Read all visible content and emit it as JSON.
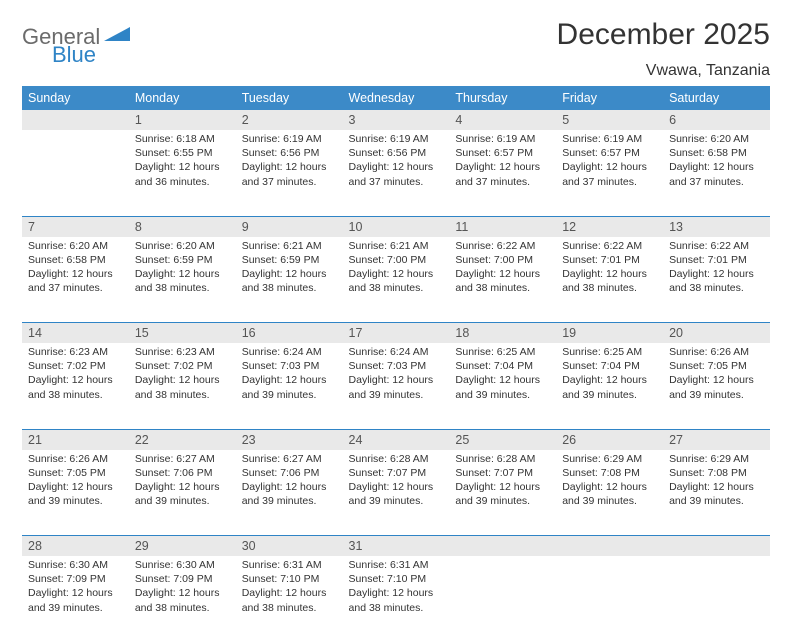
{
  "logo": {
    "gray": "General",
    "blue": "Blue"
  },
  "title": "December 2025",
  "location": "Vwawa, Tanzania",
  "weekdays": [
    "Sunday",
    "Monday",
    "Tuesday",
    "Wednesday",
    "Thursday",
    "Friday",
    "Saturday"
  ],
  "colors": {
    "header_bg": "#3c8ac8",
    "header_text": "#ffffff",
    "daynum_bg": "#e9e9e9",
    "rule": "#2f84c6",
    "logo_gray": "#6b6b6b",
    "logo_blue": "#2f84c6",
    "body_text": "#333333"
  },
  "weeks": [
    [
      null,
      {
        "n": "1",
        "sr": "Sunrise: 6:18 AM",
        "ss": "Sunset: 6:55 PM",
        "dl": "Daylight: 12 hours and 36 minutes."
      },
      {
        "n": "2",
        "sr": "Sunrise: 6:19 AM",
        "ss": "Sunset: 6:56 PM",
        "dl": "Daylight: 12 hours and 37 minutes."
      },
      {
        "n": "3",
        "sr": "Sunrise: 6:19 AM",
        "ss": "Sunset: 6:56 PM",
        "dl": "Daylight: 12 hours and 37 minutes."
      },
      {
        "n": "4",
        "sr": "Sunrise: 6:19 AM",
        "ss": "Sunset: 6:57 PM",
        "dl": "Daylight: 12 hours and 37 minutes."
      },
      {
        "n": "5",
        "sr": "Sunrise: 6:19 AM",
        "ss": "Sunset: 6:57 PM",
        "dl": "Daylight: 12 hours and 37 minutes."
      },
      {
        "n": "6",
        "sr": "Sunrise: 6:20 AM",
        "ss": "Sunset: 6:58 PM",
        "dl": "Daylight: 12 hours and 37 minutes."
      }
    ],
    [
      {
        "n": "7",
        "sr": "Sunrise: 6:20 AM",
        "ss": "Sunset: 6:58 PM",
        "dl": "Daylight: 12 hours and 37 minutes."
      },
      {
        "n": "8",
        "sr": "Sunrise: 6:20 AM",
        "ss": "Sunset: 6:59 PM",
        "dl": "Daylight: 12 hours and 38 minutes."
      },
      {
        "n": "9",
        "sr": "Sunrise: 6:21 AM",
        "ss": "Sunset: 6:59 PM",
        "dl": "Daylight: 12 hours and 38 minutes."
      },
      {
        "n": "10",
        "sr": "Sunrise: 6:21 AM",
        "ss": "Sunset: 7:00 PM",
        "dl": "Daylight: 12 hours and 38 minutes."
      },
      {
        "n": "11",
        "sr": "Sunrise: 6:22 AM",
        "ss": "Sunset: 7:00 PM",
        "dl": "Daylight: 12 hours and 38 minutes."
      },
      {
        "n": "12",
        "sr": "Sunrise: 6:22 AM",
        "ss": "Sunset: 7:01 PM",
        "dl": "Daylight: 12 hours and 38 minutes."
      },
      {
        "n": "13",
        "sr": "Sunrise: 6:22 AM",
        "ss": "Sunset: 7:01 PM",
        "dl": "Daylight: 12 hours and 38 minutes."
      }
    ],
    [
      {
        "n": "14",
        "sr": "Sunrise: 6:23 AM",
        "ss": "Sunset: 7:02 PM",
        "dl": "Daylight: 12 hours and 38 minutes."
      },
      {
        "n": "15",
        "sr": "Sunrise: 6:23 AM",
        "ss": "Sunset: 7:02 PM",
        "dl": "Daylight: 12 hours and 38 minutes."
      },
      {
        "n": "16",
        "sr": "Sunrise: 6:24 AM",
        "ss": "Sunset: 7:03 PM",
        "dl": "Daylight: 12 hours and 39 minutes."
      },
      {
        "n": "17",
        "sr": "Sunrise: 6:24 AM",
        "ss": "Sunset: 7:03 PM",
        "dl": "Daylight: 12 hours and 39 minutes."
      },
      {
        "n": "18",
        "sr": "Sunrise: 6:25 AM",
        "ss": "Sunset: 7:04 PM",
        "dl": "Daylight: 12 hours and 39 minutes."
      },
      {
        "n": "19",
        "sr": "Sunrise: 6:25 AM",
        "ss": "Sunset: 7:04 PM",
        "dl": "Daylight: 12 hours and 39 minutes."
      },
      {
        "n": "20",
        "sr": "Sunrise: 6:26 AM",
        "ss": "Sunset: 7:05 PM",
        "dl": "Daylight: 12 hours and 39 minutes."
      }
    ],
    [
      {
        "n": "21",
        "sr": "Sunrise: 6:26 AM",
        "ss": "Sunset: 7:05 PM",
        "dl": "Daylight: 12 hours and 39 minutes."
      },
      {
        "n": "22",
        "sr": "Sunrise: 6:27 AM",
        "ss": "Sunset: 7:06 PM",
        "dl": "Daylight: 12 hours and 39 minutes."
      },
      {
        "n": "23",
        "sr": "Sunrise: 6:27 AM",
        "ss": "Sunset: 7:06 PM",
        "dl": "Daylight: 12 hours and 39 minutes."
      },
      {
        "n": "24",
        "sr": "Sunrise: 6:28 AM",
        "ss": "Sunset: 7:07 PM",
        "dl": "Daylight: 12 hours and 39 minutes."
      },
      {
        "n": "25",
        "sr": "Sunrise: 6:28 AM",
        "ss": "Sunset: 7:07 PM",
        "dl": "Daylight: 12 hours and 39 minutes."
      },
      {
        "n": "26",
        "sr": "Sunrise: 6:29 AM",
        "ss": "Sunset: 7:08 PM",
        "dl": "Daylight: 12 hours and 39 minutes."
      },
      {
        "n": "27",
        "sr": "Sunrise: 6:29 AM",
        "ss": "Sunset: 7:08 PM",
        "dl": "Daylight: 12 hours and 39 minutes."
      }
    ],
    [
      {
        "n": "28",
        "sr": "Sunrise: 6:30 AM",
        "ss": "Sunset: 7:09 PM",
        "dl": "Daylight: 12 hours and 39 minutes."
      },
      {
        "n": "29",
        "sr": "Sunrise: 6:30 AM",
        "ss": "Sunset: 7:09 PM",
        "dl": "Daylight: 12 hours and 38 minutes."
      },
      {
        "n": "30",
        "sr": "Sunrise: 6:31 AM",
        "ss": "Sunset: 7:10 PM",
        "dl": "Daylight: 12 hours and 38 minutes."
      },
      {
        "n": "31",
        "sr": "Sunrise: 6:31 AM",
        "ss": "Sunset: 7:10 PM",
        "dl": "Daylight: 12 hours and 38 minutes."
      },
      null,
      null,
      null
    ]
  ]
}
